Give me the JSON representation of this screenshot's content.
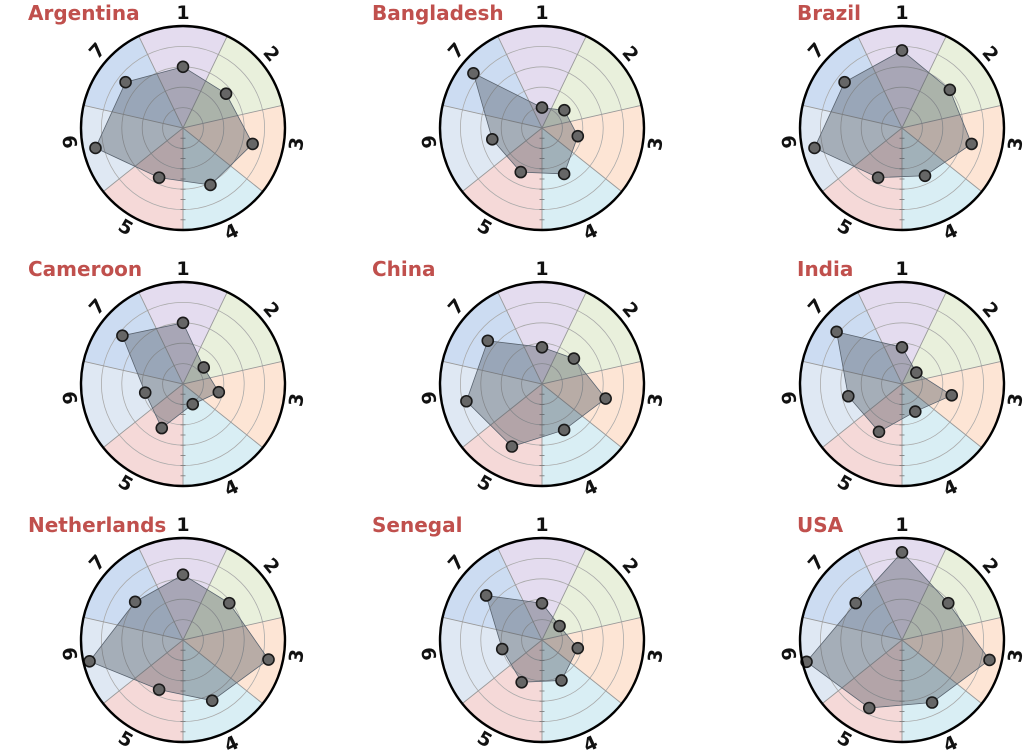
{
  "colors": {
    "sectors": [
      "#e4dcef",
      "#e9f0dc",
      "#fde5d5",
      "#d9eef4",
      "#f5d9d8",
      "#dfe8f3",
      "#ccdcf2"
    ],
    "title": "#c0504d",
    "marker_fill": "#666666",
    "polygon_fill": "rgba(70,80,90,0.38)"
  },
  "chart_data": [
    {
      "type": "radar",
      "title": "Argentina",
      "axes": [
        "1",
        "2",
        "3",
        "4",
        "5",
        "6",
        "7"
      ],
      "rlim": [
        0,
        5
      ],
      "values": [
        3.0,
        2.7,
        3.5,
        3.1,
        2.7,
        4.4,
        3.6
      ],
      "grid": true
    },
    {
      "type": "radar",
      "title": "Bangladesh",
      "axes": [
        "1",
        "2",
        "3",
        "4",
        "5",
        "6",
        "7"
      ],
      "rlim": [
        0,
        5
      ],
      "values": [
        1.0,
        1.4,
        1.8,
        2.5,
        2.4,
        2.5,
        4.3
      ],
      "grid": true
    },
    {
      "type": "radar",
      "title": "Brazil",
      "axes": [
        "1",
        "2",
        "3",
        "4",
        "5",
        "6",
        "7"
      ],
      "rlim": [
        0,
        5
      ],
      "values": [
        3.8,
        3.0,
        3.5,
        2.6,
        2.7,
        4.4,
        3.6
      ],
      "grid": true
    },
    {
      "type": "radar",
      "title": "Cameroon",
      "axes": [
        "1",
        "2",
        "3",
        "4",
        "5",
        "6",
        "7"
      ],
      "rlim": [
        0,
        5
      ],
      "values": [
        3.0,
        1.3,
        1.8,
        1.1,
        2.4,
        1.9,
        3.8
      ],
      "grid": true
    },
    {
      "type": "radar",
      "title": "China",
      "axes": [
        "1",
        "2",
        "3",
        "4",
        "5",
        "6",
        "7"
      ],
      "rlim": [
        0,
        5
      ],
      "values": [
        1.8,
        2.0,
        3.2,
        2.5,
        3.4,
        3.8,
        3.4
      ],
      "grid": true
    },
    {
      "type": "radar",
      "title": "India",
      "axes": [
        "1",
        "2",
        "3",
        "4",
        "5",
        "6",
        "7"
      ],
      "rlim": [
        0,
        5
      ],
      "values": [
        1.8,
        0.9,
        2.5,
        1.5,
        2.6,
        2.7,
        4.1
      ],
      "grid": true
    },
    {
      "type": "radar",
      "title": "Netherlands",
      "axes": [
        "1",
        "2",
        "3",
        "4",
        "5",
        "6",
        "7"
      ],
      "rlim": [
        0,
        5
      ],
      "values": [
        3.2,
        2.9,
        4.3,
        3.3,
        2.7,
        4.7,
        3.0
      ],
      "grid": true
    },
    {
      "type": "radar",
      "title": "Senegal",
      "axes": [
        "1",
        "2",
        "3",
        "4",
        "5",
        "6",
        "7"
      ],
      "rlim": [
        0,
        5
      ],
      "values": [
        1.8,
        1.1,
        1.8,
        2.2,
        2.3,
        2.0,
        3.5
      ],
      "grid": true
    },
    {
      "type": "radar",
      "title": "USA",
      "axes": [
        "1",
        "2",
        "3",
        "4",
        "5",
        "6",
        "7"
      ],
      "rlim": [
        0,
        5
      ],
      "values": [
        4.3,
        2.9,
        4.4,
        3.4,
        3.7,
        4.8,
        2.9
      ],
      "grid": true
    }
  ]
}
